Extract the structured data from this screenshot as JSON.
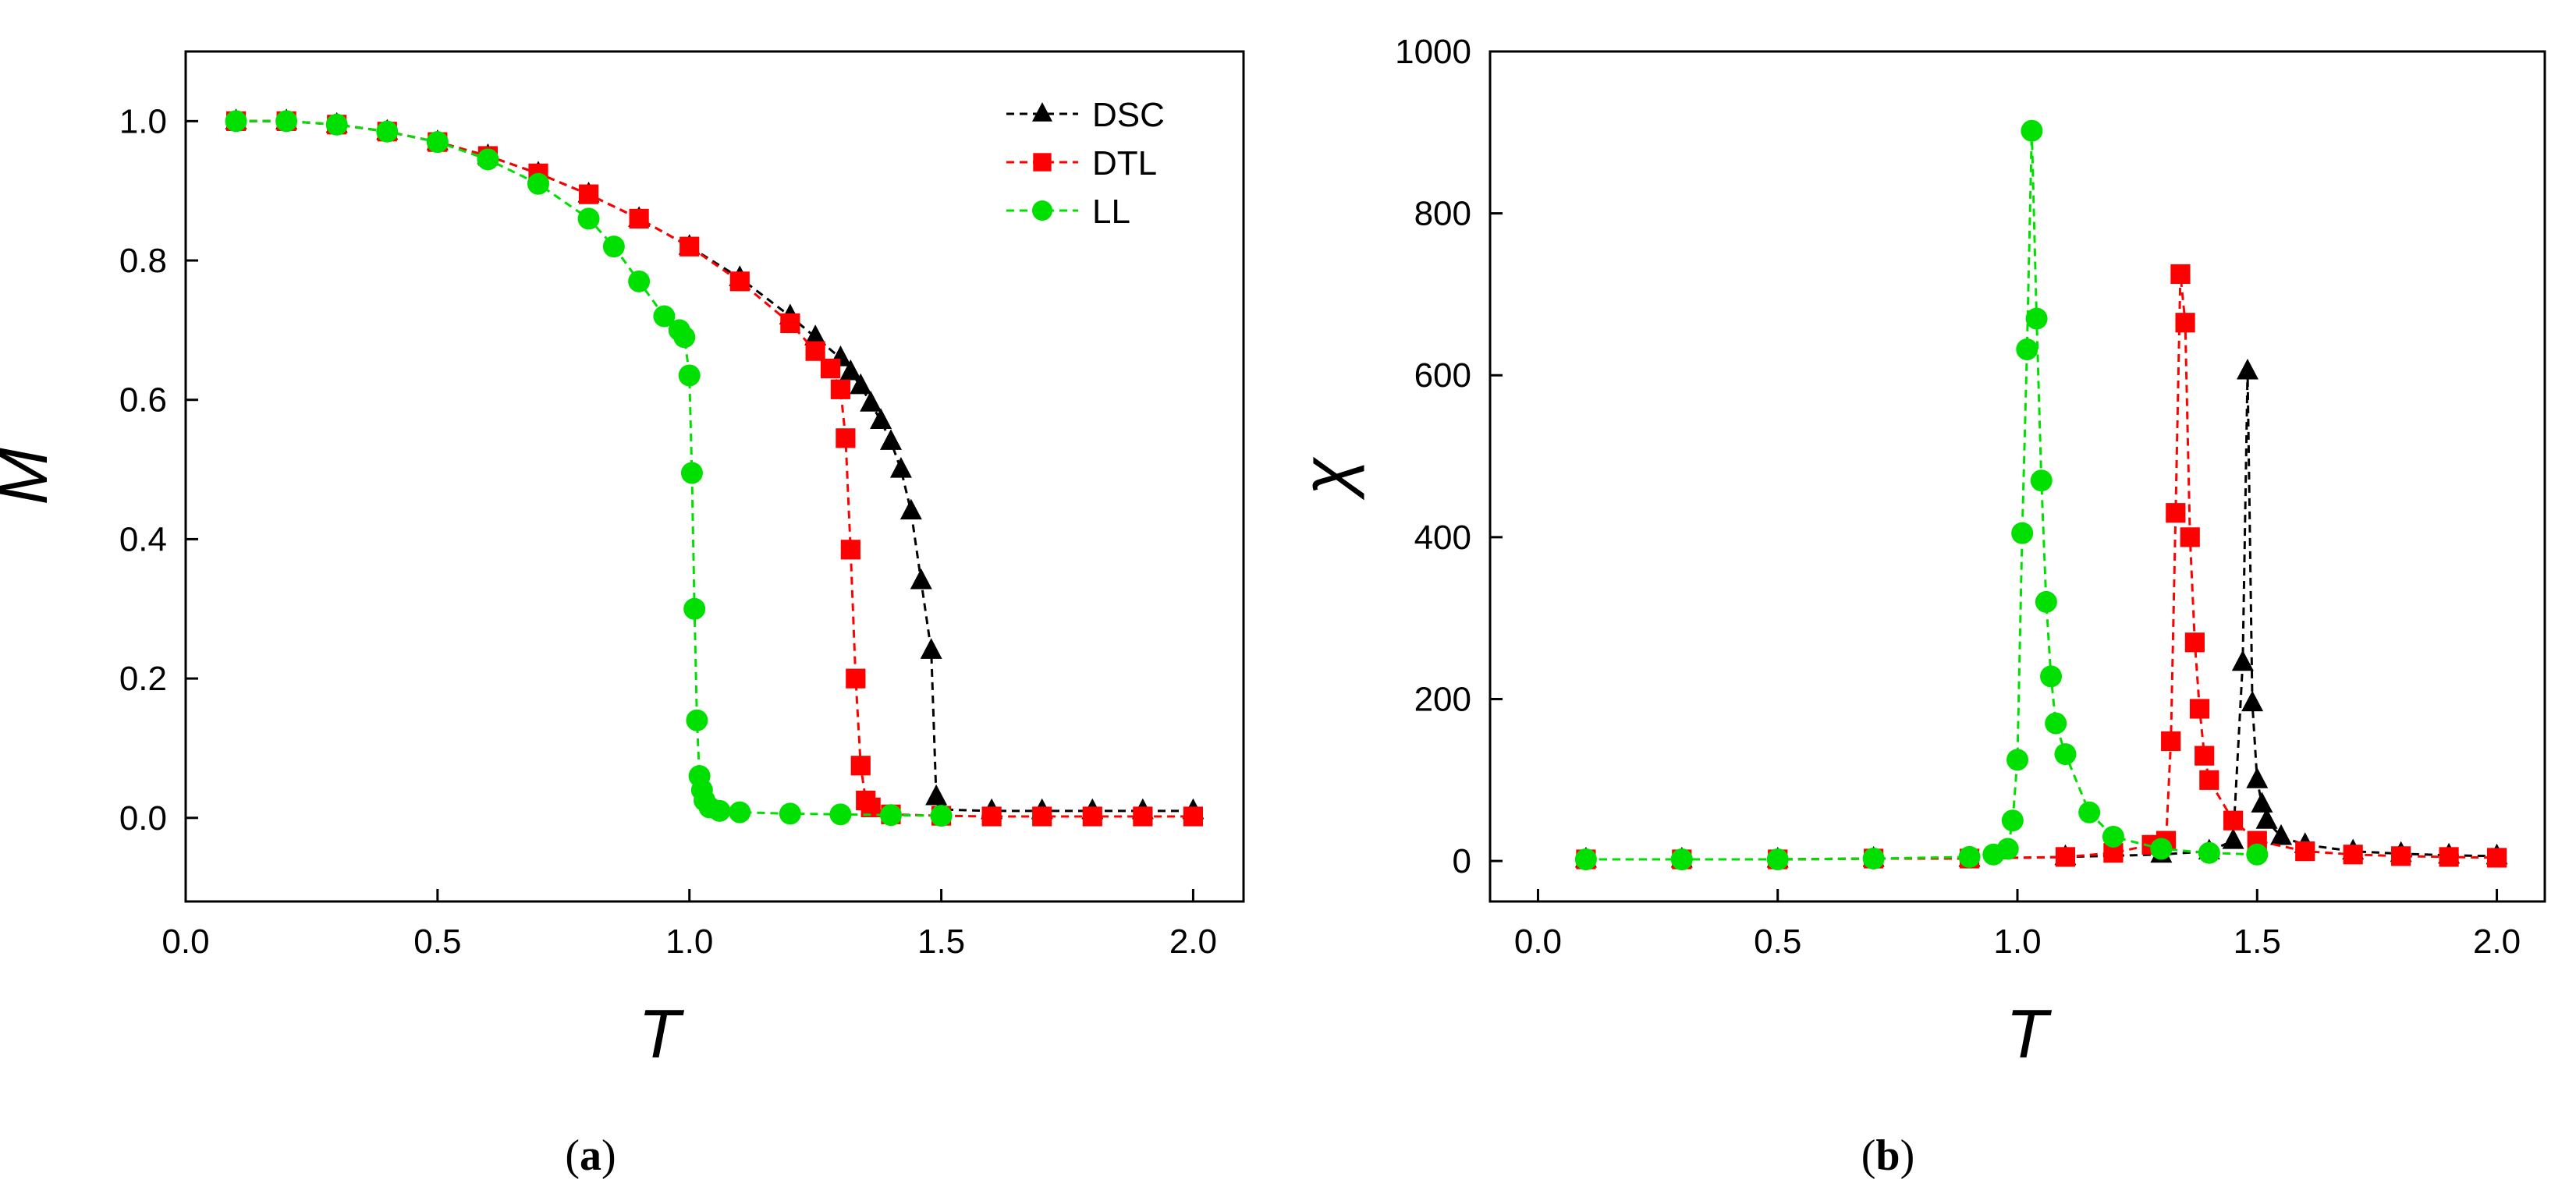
{
  "colors": {
    "DSC": "#000000",
    "DTL": "#ff0000",
    "LL": "#00e000"
  },
  "chart_data": [
    {
      "type": "line",
      "panel": "(a)",
      "caption_open": "(",
      "caption_letter": "a",
      "caption_close": ")",
      "xlabel": "T",
      "ylabel": "M",
      "xlim": [
        0.0,
        2.1
      ],
      "ylim": [
        -0.12,
        1.1
      ],
      "xticks": [
        0.0,
        0.5,
        1.0,
        1.5,
        2.0
      ],
      "xtick_labels": [
        "0.0",
        "0.5",
        "1.0",
        "1.5",
        "2.0"
      ],
      "yticks": [
        0.0,
        0.2,
        0.4,
        0.6,
        0.8,
        1.0
      ],
      "ytick_labels": [
        "0.0",
        "0.2",
        "0.4",
        "0.6",
        "0.8",
        "1.0"
      ],
      "legend_position": "top-right",
      "series": [
        {
          "name": "DSC",
          "marker": "triangle",
          "x": [
            0.1,
            0.2,
            0.3,
            0.4,
            0.5,
            0.6,
            0.7,
            0.8,
            0.9,
            1.0,
            1.1,
            1.2,
            1.25,
            1.3,
            1.32,
            1.34,
            1.36,
            1.38,
            1.4,
            1.42,
            1.44,
            1.46,
            1.48,
            1.49,
            1.5,
            1.6,
            1.7,
            1.8,
            1.9,
            2.0
          ],
          "y": [
            1.0,
            1.0,
            0.995,
            0.985,
            0.97,
            0.95,
            0.925,
            0.895,
            0.86,
            0.82,
            0.775,
            0.72,
            0.69,
            0.66,
            0.64,
            0.62,
            0.595,
            0.57,
            0.54,
            0.5,
            0.44,
            0.34,
            0.24,
            0.03,
            0.012,
            0.01,
            0.01,
            0.01,
            0.01,
            0.01
          ]
        },
        {
          "name": "DTL",
          "marker": "square",
          "x": [
            0.1,
            0.2,
            0.3,
            0.4,
            0.5,
            0.6,
            0.7,
            0.8,
            0.9,
            1.0,
            1.1,
            1.2,
            1.25,
            1.28,
            1.3,
            1.31,
            1.32,
            1.33,
            1.34,
            1.35,
            1.36,
            1.4,
            1.5,
            1.6,
            1.7,
            1.8,
            1.9,
            2.0
          ],
          "y": [
            1.0,
            1.0,
            0.995,
            0.985,
            0.97,
            0.95,
            0.925,
            0.895,
            0.86,
            0.82,
            0.77,
            0.71,
            0.67,
            0.645,
            0.615,
            0.545,
            0.385,
            0.2,
            0.075,
            0.025,
            0.015,
            0.005,
            0.003,
            0.002,
            0.002,
            0.002,
            0.002,
            0.002
          ]
        },
        {
          "name": "LL",
          "marker": "circle",
          "x": [
            0.1,
            0.2,
            0.3,
            0.4,
            0.5,
            0.6,
            0.7,
            0.8,
            0.85,
            0.9,
            0.95,
            0.98,
            0.99,
            1.0,
            1.005,
            1.01,
            1.015,
            1.02,
            1.025,
            1.03,
            1.04,
            1.06,
            1.1,
            1.2,
            1.3,
            1.4,
            1.5
          ],
          "y": [
            1.0,
            1.0,
            0.995,
            0.985,
            0.97,
            0.945,
            0.91,
            0.86,
            0.82,
            0.77,
            0.72,
            0.7,
            0.69,
            0.635,
            0.495,
            0.3,
            0.14,
            0.06,
            0.04,
            0.025,
            0.015,
            0.01,
            0.008,
            0.006,
            0.005,
            0.004,
            0.003
          ]
        }
      ]
    },
    {
      "type": "line",
      "panel": "(b)",
      "caption_open": "(",
      "caption_letter": "b",
      "caption_close": ")",
      "xlabel": "T",
      "ylabel": "χ",
      "xlim": [
        -0.1,
        2.1
      ],
      "ylim": [
        -50,
        1000
      ],
      "xticks": [
        0.0,
        0.5,
        1.0,
        1.5,
        2.0
      ],
      "xtick_labels": [
        "0.0",
        "0.5",
        "1.0",
        "1.5",
        "2.0"
      ],
      "yticks": [
        0,
        200,
        400,
        600,
        800,
        1000
      ],
      "ytick_labels": [
        "0",
        "200",
        "400",
        "600",
        "800",
        "1000"
      ],
      "series": [
        {
          "name": "DSC",
          "marker": "triangle",
          "x": [
            0.1,
            0.3,
            0.5,
            0.7,
            0.9,
            1.1,
            1.3,
            1.4,
            1.45,
            1.47,
            1.48,
            1.49,
            1.5,
            1.51,
            1.52,
            1.55,
            1.6,
            1.7,
            1.8,
            1.9,
            2.0
          ],
          "y": [
            2,
            2,
            2,
            3,
            3,
            5,
            8,
            12,
            25,
            245,
            605,
            195,
            100,
            70,
            50,
            30,
            20,
            12,
            9,
            7,
            6
          ]
        },
        {
          "name": "DTL",
          "marker": "square",
          "x": [
            0.1,
            0.3,
            0.5,
            0.7,
            0.9,
            1.1,
            1.2,
            1.28,
            1.31,
            1.32,
            1.33,
            1.34,
            1.35,
            1.36,
            1.37,
            1.38,
            1.39,
            1.4,
            1.45,
            1.5,
            1.6,
            1.7,
            1.8,
            1.9,
            2.0
          ],
          "y": [
            2,
            2,
            2,
            3,
            3,
            5,
            10,
            20,
            25,
            148,
            430,
            725,
            665,
            400,
            270,
            188,
            130,
            100,
            50,
            25,
            12,
            8,
            6,
            5,
            4
          ]
        },
        {
          "name": "LL",
          "marker": "circle",
          "x": [
            0.1,
            0.3,
            0.5,
            0.7,
            0.9,
            0.95,
            0.98,
            0.99,
            1.0,
            1.01,
            1.02,
            1.03,
            1.04,
            1.05,
            1.06,
            1.07,
            1.08,
            1.1,
            1.15,
            1.2,
            1.3,
            1.4,
            1.5
          ],
          "y": [
            2,
            2,
            2,
            3,
            5,
            8,
            15,
            50,
            125,
            405,
            632,
            902,
            670,
            470,
            320,
            228,
            170,
            132,
            60,
            30,
            15,
            10,
            8
          ]
        }
      ]
    }
  ]
}
